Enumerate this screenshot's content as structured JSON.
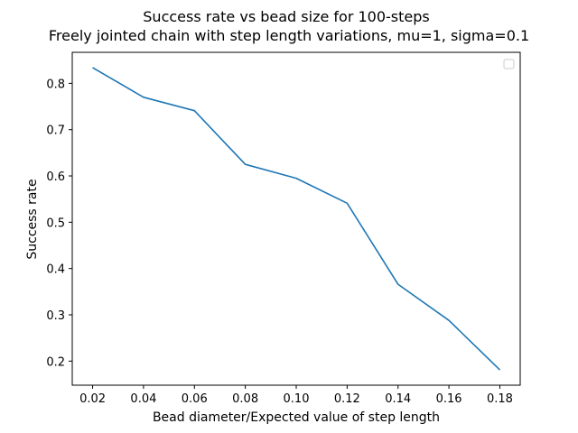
{
  "chart_data": {
    "type": "line",
    "title": "Success rate vs bead size for 100-steps",
    "subtitle": "Freely jointed chain with step length variations, mu=1, sigma=0.1",
    "xlabel": "Bead diameter/Expected value of step length",
    "ylabel": "Success rate",
    "x": [
      0.02,
      0.04,
      0.06,
      0.08,
      0.1,
      0.12,
      0.14,
      0.16,
      0.18
    ],
    "series": [
      {
        "values": [
          0.834,
          0.77,
          0.741,
          0.625,
          0.595,
          0.541,
          0.366,
          0.288,
          0.181
        ]
      }
    ],
    "xlim": [
      0.012,
      0.188
    ],
    "ylim": [
      0.148,
      0.867
    ],
    "xticks": [
      "0.02",
      "0.04",
      "0.06",
      "0.08",
      "0.10",
      "0.12",
      "0.14",
      "0.16",
      "0.18"
    ],
    "yticks": [
      "0.2",
      "0.3",
      "0.4",
      "0.5",
      "0.6",
      "0.7",
      "0.8"
    ],
    "grid": false,
    "legend": {
      "placement": "top-right",
      "entries": []
    },
    "line_color": "#1f77b4"
  }
}
